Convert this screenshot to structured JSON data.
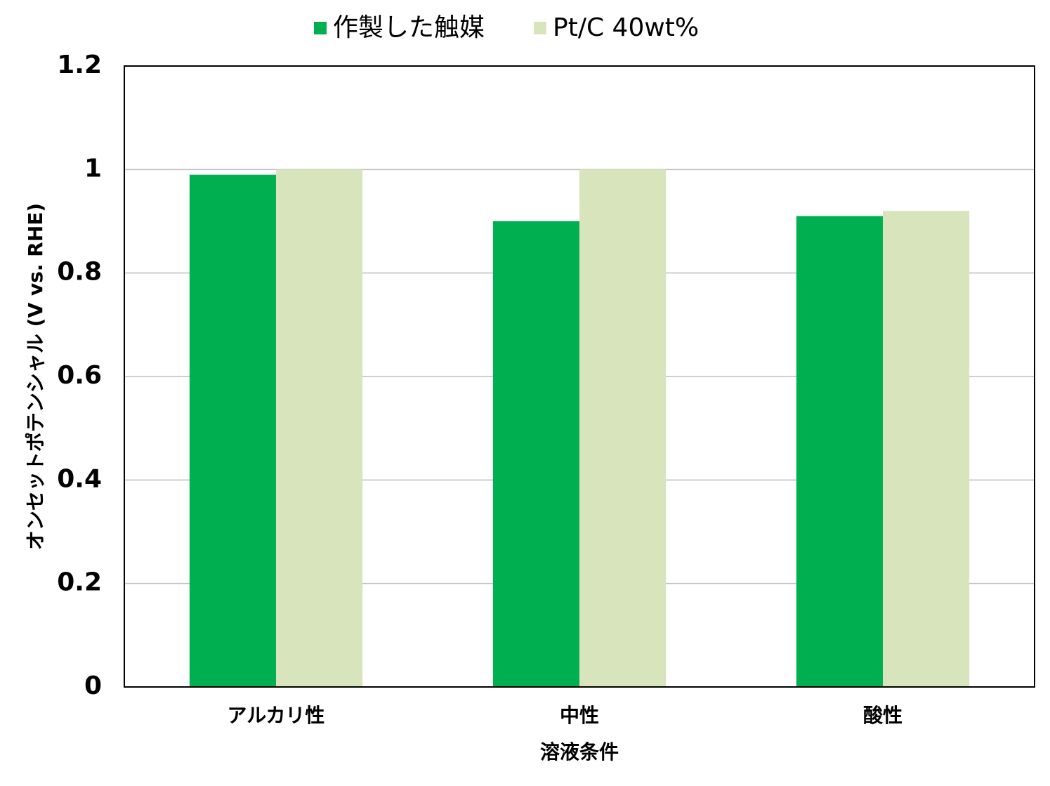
{
  "chart_data": {
    "type": "bar",
    "categories": [
      "アルカリ性",
      "中性",
      "酸性"
    ],
    "series": [
      {
        "name": "作製した触媒",
        "color": "#00b050",
        "values": [
          0.99,
          0.9,
          0.91
        ]
      },
      {
        "name": "Pt/C 40wt%",
        "color": "#d8e4bc",
        "values": [
          1.0,
          1.0,
          0.92
        ]
      }
    ],
    "x_label": "溶液条件",
    "y_label": "オンセットポテンシャル (V vs. RHE)",
    "ylim": [
      0,
      1.2
    ],
    "yticks": [
      0,
      0.2,
      0.4,
      0.6,
      0.8,
      1,
      1.2
    ],
    "grid": true,
    "legend": "top"
  }
}
